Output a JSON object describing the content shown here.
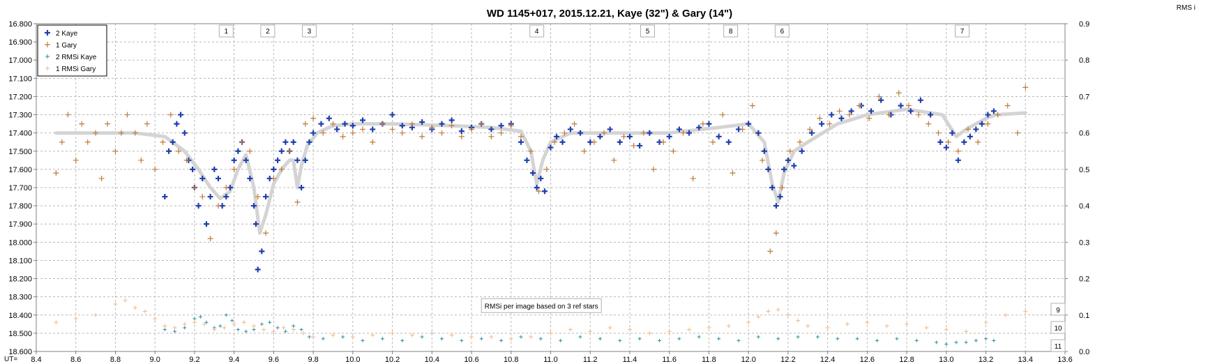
{
  "chart_data": {
    "type": "scatter",
    "title": "WD 1145+017, 2015.12.21,  Kaye (32\") & Gary (14\")",
    "xlabel": "UT=",
    "right_axis_label": "RMS i",
    "xlim": [
      8.4,
      13.6
    ],
    "ylim_left": [
      16.8,
      18.6
    ],
    "ylim_right": [
      0.0,
      0.9
    ],
    "left_y_inverted": true,
    "grid": true,
    "x_ticks": [
      "8.4",
      "8.6",
      "8.8",
      "9.0",
      "9.2",
      "9.4",
      "9.6",
      "9.8",
      "10.0",
      "10.2",
      "10.4",
      "10.6",
      "10.8",
      "11.0",
      "11.2",
      "11.4",
      "11.6",
      "11.8",
      "12.0",
      "12.2",
      "12.4",
      "12.6",
      "12.8",
      "13.0",
      "13.2",
      "13.4",
      "13.6"
    ],
    "y_ticks_left": [
      "16.800",
      "16.900",
      "17.000",
      "17.100",
      "17.200",
      "17.300",
      "17.400",
      "17.500",
      "17.600",
      "17.700",
      "17.800",
      "17.900",
      "18.000",
      "18.100",
      "18.200",
      "18.300",
      "18.400",
      "18.500",
      "18.600"
    ],
    "y_ticks_right": [
      "0.9",
      "0.8",
      "0.7",
      "0.6",
      "0.5",
      "0.4",
      "0.3",
      "0.2",
      "0.1",
      "0.0"
    ],
    "legend_position": "top-left",
    "legend": [
      "2 Kaye",
      "1 Gary",
      "2 RMSi Kaye",
      "1 RMSi Gary"
    ],
    "colors": {
      "kaye": "#1f3fb0",
      "gary": "#c07a3a",
      "rms_kaye": "#2a8fa0",
      "rms_gary": "#f0b888",
      "model": "#d4d4d4"
    },
    "dip_markers": [
      {
        "label": "1",
        "x": 9.36
      },
      {
        "label": "2",
        "x": 9.57
      },
      {
        "label": "3",
        "x": 9.78
      },
      {
        "label": "4",
        "x": 10.93
      },
      {
        "label": "5",
        "x": 11.49
      },
      {
        "label": "8",
        "x": 11.91
      },
      {
        "label": "6",
        "x": 12.17
      },
      {
        "label": "7",
        "x": 13.08
      }
    ],
    "annotation": "RMSi per image based on 3 ref stars",
    "right_labels": [
      {
        "label": "9",
        "y": 0.115
      },
      {
        "label": "10",
        "y": 0.065
      },
      {
        "label": "11",
        "y": 0.015
      }
    ],
    "model_curve": {
      "x": [
        8.5,
        8.9,
        9.05,
        9.15,
        9.22,
        9.28,
        9.33,
        9.38,
        9.42,
        9.46,
        9.5,
        9.53,
        9.56,
        9.6,
        9.64,
        9.68,
        9.7,
        9.72,
        9.74,
        9.77,
        9.82,
        9.9,
        10.0,
        10.2,
        10.5,
        10.7,
        10.85,
        10.9,
        10.93,
        10.96,
        11.0,
        11.1,
        11.3,
        11.6,
        11.85,
        12.0,
        12.08,
        12.12,
        12.15,
        12.18,
        12.23,
        12.3,
        12.45,
        12.6,
        12.8,
        12.98,
        13.05,
        13.1,
        13.2,
        13.25,
        13.4
      ],
      "y": [
        17.4,
        17.4,
        17.42,
        17.5,
        17.6,
        17.7,
        17.76,
        17.72,
        17.6,
        17.52,
        17.7,
        17.95,
        17.85,
        17.68,
        17.6,
        17.55,
        17.55,
        17.7,
        17.58,
        17.47,
        17.4,
        17.36,
        17.35,
        17.35,
        17.36,
        17.37,
        17.39,
        17.5,
        17.68,
        17.55,
        17.45,
        17.4,
        17.4,
        17.4,
        17.37,
        17.35,
        17.45,
        17.68,
        17.78,
        17.62,
        17.5,
        17.45,
        17.35,
        17.3,
        17.27,
        17.3,
        17.42,
        17.38,
        17.32,
        17.3,
        17.29
      ]
    },
    "series": [
      {
        "name": "2 Kaye",
        "x": [
          9.05,
          9.07,
          9.09,
          9.11,
          9.13,
          9.15,
          9.17,
          9.19,
          9.2,
          9.22,
          9.24,
          9.26,
          9.28,
          9.3,
          9.32,
          9.34,
          9.36,
          9.38,
          9.4,
          9.42,
          9.44,
          9.46,
          9.48,
          9.5,
          9.51,
          9.52,
          9.54,
          9.56,
          9.58,
          9.6,
          9.62,
          9.64,
          9.66,
          9.68,
          9.7,
          9.72,
          9.74,
          9.76,
          9.78,
          9.8,
          9.84,
          9.88,
          9.92,
          9.96,
          10.0,
          10.05,
          10.1,
          10.15,
          10.2,
          10.25,
          10.3,
          10.35,
          10.4,
          10.45,
          10.5,
          10.55,
          10.6,
          10.65,
          10.7,
          10.75,
          10.8,
          10.85,
          10.88,
          10.91,
          10.93,
          10.95,
          10.97,
          11.0,
          11.03,
          11.06,
          11.1,
          11.15,
          11.2,
          11.25,
          11.3,
          11.35,
          11.4,
          11.45,
          11.5,
          11.55,
          11.6,
          11.65,
          11.7,
          11.75,
          11.8,
          11.85,
          11.9,
          11.95,
          12.0,
          12.05,
          12.08,
          12.1,
          12.12,
          12.14,
          12.16,
          12.18,
          12.2,
          12.23,
          12.27,
          12.32,
          12.37,
          12.42,
          12.47,
          12.52,
          12.57,
          12.62,
          12.67,
          12.72,
          12.77,
          12.82,
          12.87,
          12.92,
          12.97,
          13.0,
          13.03,
          13.06,
          13.09,
          13.12,
          13.15,
          13.18,
          13.21,
          13.24
        ],
        "y": [
          17.75,
          17.5,
          17.45,
          17.35,
          17.3,
          17.4,
          17.55,
          17.6,
          17.7,
          17.8,
          17.65,
          17.9,
          17.75,
          17.6,
          17.65,
          17.8,
          17.75,
          17.7,
          17.55,
          17.5,
          17.45,
          17.55,
          17.65,
          17.8,
          17.9,
          18.15,
          18.05,
          17.75,
          17.65,
          17.6,
          17.55,
          17.5,
          17.45,
          17.5,
          17.45,
          17.55,
          17.7,
          17.55,
          17.45,
          17.4,
          17.35,
          17.32,
          17.38,
          17.35,
          17.36,
          17.33,
          17.38,
          17.35,
          17.3,
          17.36,
          17.37,
          17.34,
          17.38,
          17.35,
          17.33,
          17.39,
          17.37,
          17.35,
          17.38,
          17.36,
          17.35,
          17.45,
          17.55,
          17.62,
          17.7,
          17.65,
          17.72,
          17.48,
          17.42,
          17.45,
          17.38,
          17.4,
          17.45,
          17.42,
          17.38,
          17.45,
          17.42,
          17.47,
          17.4,
          17.45,
          17.42,
          17.38,
          17.4,
          17.37,
          17.35,
          17.42,
          17.45,
          17.38,
          17.35,
          17.4,
          17.5,
          17.6,
          17.7,
          17.8,
          17.75,
          17.6,
          17.55,
          17.58,
          17.5,
          17.4,
          17.35,
          17.3,
          17.32,
          17.28,
          17.25,
          17.28,
          17.22,
          17.3,
          17.25,
          17.28,
          17.22,
          17.3,
          17.45,
          17.48,
          17.4,
          17.55,
          17.45,
          17.42,
          17.38,
          17.35,
          17.3,
          17.28
        ]
      },
      {
        "name": "1 Gary",
        "x": [
          8.5,
          8.53,
          8.56,
          8.6,
          8.63,
          8.66,
          8.7,
          8.73,
          8.76,
          8.8,
          8.83,
          8.86,
          8.9,
          8.93,
          8.96,
          9.0,
          9.04,
          9.08,
          9.12,
          9.16,
          9.2,
          9.24,
          9.28,
          9.32,
          9.36,
          9.4,
          9.44,
          9.48,
          9.52,
          9.56,
          9.6,
          9.64,
          9.68,
          9.72,
          9.76,
          9.8,
          9.85,
          9.9,
          9.95,
          10.0,
          10.05,
          10.1,
          10.15,
          10.2,
          10.25,
          10.3,
          10.35,
          10.4,
          10.45,
          10.5,
          10.55,
          10.6,
          10.65,
          10.7,
          10.75,
          10.8,
          10.85,
          10.9,
          10.94,
          10.98,
          11.02,
          11.07,
          11.12,
          11.17,
          11.22,
          11.27,
          11.32,
          11.37,
          11.42,
          11.47,
          11.52,
          11.57,
          11.62,
          11.67,
          11.72,
          11.77,
          11.82,
          11.87,
          11.92,
          11.97,
          12.02,
          12.07,
          12.11,
          12.14,
          12.17,
          12.21,
          12.26,
          12.31,
          12.36,
          12.41,
          12.46,
          12.51,
          12.56,
          12.61,
          12.66,
          12.71,
          12.76,
          12.81,
          12.86,
          12.91,
          12.96,
          13.01,
          13.06,
          13.11,
          13.16,
          13.21,
          13.26,
          13.31,
          13.36,
          13.4
        ],
        "y": [
          17.62,
          17.45,
          17.3,
          17.55,
          17.35,
          17.45,
          17.4,
          17.65,
          17.35,
          17.5,
          17.4,
          17.3,
          17.4,
          17.55,
          17.35,
          17.6,
          17.45,
          17.3,
          17.5,
          17.55,
          17.7,
          17.75,
          17.98,
          17.8,
          17.7,
          17.6,
          17.45,
          17.5,
          17.75,
          17.95,
          17.65,
          17.6,
          17.5,
          17.78,
          17.35,
          17.32,
          17.4,
          17.35,
          17.42,
          17.4,
          17.38,
          17.45,
          17.35,
          17.38,
          17.4,
          17.35,
          17.42,
          17.37,
          17.4,
          17.36,
          17.42,
          17.38,
          17.35,
          17.42,
          17.4,
          17.36,
          17.42,
          17.5,
          17.72,
          17.6,
          17.45,
          17.4,
          17.35,
          17.5,
          17.45,
          17.4,
          17.55,
          17.42,
          17.47,
          17.4,
          17.6,
          17.45,
          17.5,
          17.4,
          17.65,
          17.35,
          17.45,
          17.3,
          17.62,
          17.38,
          17.25,
          17.55,
          18.05,
          17.95,
          17.7,
          17.5,
          17.45,
          17.38,
          17.32,
          17.35,
          17.28,
          17.3,
          17.25,
          17.32,
          17.2,
          17.3,
          17.18,
          17.25,
          17.3,
          17.35,
          17.4,
          17.45,
          17.5,
          17.38,
          17.45,
          17.35,
          17.3,
          17.25,
          17.4,
          17.15
        ]
      },
      {
        "name": "2 RMSi Kaye",
        "x": [
          9.05,
          9.1,
          9.15,
          9.2,
          9.23,
          9.26,
          9.3,
          9.33,
          9.36,
          9.39,
          9.42,
          9.46,
          9.5,
          9.54,
          9.58,
          9.62,
          9.66,
          9.7,
          9.74,
          9.78,
          9.85,
          9.95,
          10.05,
          10.15,
          10.25,
          10.35,
          10.45,
          10.55,
          10.65,
          10.75,
          10.85,
          10.95,
          11.05,
          11.15,
          11.25,
          11.35,
          11.45,
          11.55,
          11.65,
          11.75,
          11.85,
          11.95,
          12.05,
          12.15,
          12.25,
          12.35,
          12.45,
          12.55,
          12.65,
          12.75,
          12.85,
          12.95,
          13.0,
          13.05,
          13.1,
          13.15,
          13.2,
          13.24
        ],
        "y": [
          0.06,
          0.055,
          0.065,
          0.09,
          0.095,
          0.08,
          0.065,
          0.07,
          0.1,
          0.085,
          0.06,
          0.055,
          0.06,
          0.075,
          0.08,
          0.065,
          0.055,
          0.07,
          0.06,
          0.04,
          0.035,
          0.04,
          0.03,
          0.035,
          0.03,
          0.04,
          0.035,
          0.03,
          0.035,
          0.03,
          0.04,
          0.035,
          0.03,
          0.04,
          0.035,
          0.03,
          0.035,
          0.03,
          0.035,
          0.04,
          0.035,
          0.03,
          0.04,
          0.035,
          0.04,
          0.04,
          0.035,
          0.035,
          0.03,
          0.035,
          0.03,
          0.025,
          0.02,
          0.025,
          0.025,
          0.03,
          0.035,
          0.03
        ]
      },
      {
        "name": "1 RMSi Gary",
        "x": [
          8.5,
          8.6,
          8.7,
          8.8,
          8.85,
          8.9,
          8.95,
          9.0,
          9.05,
          9.1,
          9.15,
          9.2,
          9.25,
          9.3,
          9.35,
          9.4,
          9.45,
          9.5,
          9.55,
          9.6,
          9.65,
          9.7,
          9.75,
          9.8,
          9.9,
          10.0,
          10.1,
          10.2,
          10.3,
          10.4,
          10.5,
          10.6,
          10.7,
          10.8,
          10.9,
          11.0,
          11.1,
          11.2,
          11.3,
          11.4,
          11.5,
          11.6,
          11.7,
          11.8,
          11.9,
          12.0,
          12.05,
          12.1,
          12.15,
          12.2,
          12.25,
          12.3,
          12.4,
          12.5,
          12.6,
          12.7,
          12.8,
          12.9,
          13.0,
          13.1,
          13.2,
          13.3,
          13.4
        ],
        "y": [
          0.08,
          0.09,
          0.1,
          0.13,
          0.14,
          0.12,
          0.11,
          0.09,
          0.07,
          0.065,
          0.075,
          0.08,
          0.075,
          0.06,
          0.065,
          0.075,
          0.08,
          0.07,
          0.06,
          0.055,
          0.065,
          0.06,
          0.05,
          0.04,
          0.045,
          0.04,
          0.045,
          0.05,
          0.045,
          0.05,
          0.045,
          0.04,
          0.04,
          0.035,
          0.04,
          0.05,
          0.06,
          0.055,
          0.065,
          0.06,
          0.05,
          0.055,
          0.06,
          0.065,
          0.07,
          0.08,
          0.095,
          0.11,
          0.115,
          0.1,
          0.085,
          0.07,
          0.065,
          0.075,
          0.08,
          0.07,
          0.075,
          0.065,
          0.06,
          0.055,
          0.08,
          0.1,
          0.11
        ]
      }
    ]
  }
}
